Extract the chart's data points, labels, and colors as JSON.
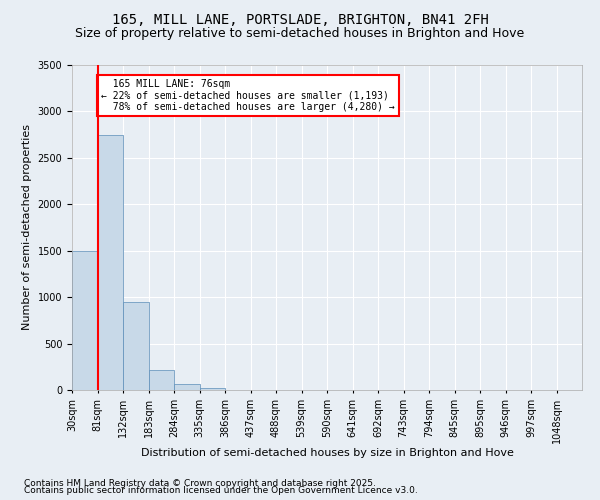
{
  "title1": "165, MILL LANE, PORTSLADE, BRIGHTON, BN41 2FH",
  "title2": "Size of property relative to semi-detached houses in Brighton and Hove",
  "xlabel": "Distribution of semi-detached houses by size in Brighton and Hove",
  "ylabel": "Number of semi-detached properties",
  "bin_labels": [
    "30sqm",
    "81sqm",
    "132sqm",
    "183sqm",
    "284sqm",
    "335sqm",
    "386sqm",
    "437sqm",
    "488sqm",
    "539sqm",
    "590sqm",
    "641sqm",
    "692sqm",
    "743sqm",
    "794sqm",
    "845sqm",
    "895sqm",
    "946sqm",
    "997sqm",
    "1048sqm"
  ],
  "bar_values": [
    1500,
    2750,
    950,
    215,
    70,
    18,
    2,
    0,
    0,
    0,
    0,
    0,
    0,
    0,
    0,
    0,
    0,
    0,
    0,
    0
  ],
  "bar_color": "#c8d9e8",
  "bar_edge_color": "#5b8db8",
  "vline_x": 1,
  "vline_color": "red",
  "property_label": "165 MILL LANE: 76sqm",
  "pct_smaller": "22% of semi-detached houses are smaller (1,193)",
  "pct_larger": "78% of semi-detached houses are larger (4,280)",
  "ylim": [
    0,
    3500
  ],
  "yticks": [
    0,
    500,
    1000,
    1500,
    2000,
    2500,
    3000,
    3500
  ],
  "footer1": "Contains HM Land Registry data © Crown copyright and database right 2025.",
  "footer2": "Contains public sector information licensed under the Open Government Licence v3.0.",
  "background_color": "#e8eef4",
  "grid_color": "#ffffff",
  "title1_fontsize": 10,
  "title2_fontsize": 9,
  "axis_fontsize": 7,
  "ylabel_fontsize": 8,
  "xlabel_fontsize": 8,
  "footer_fontsize": 6.5
}
